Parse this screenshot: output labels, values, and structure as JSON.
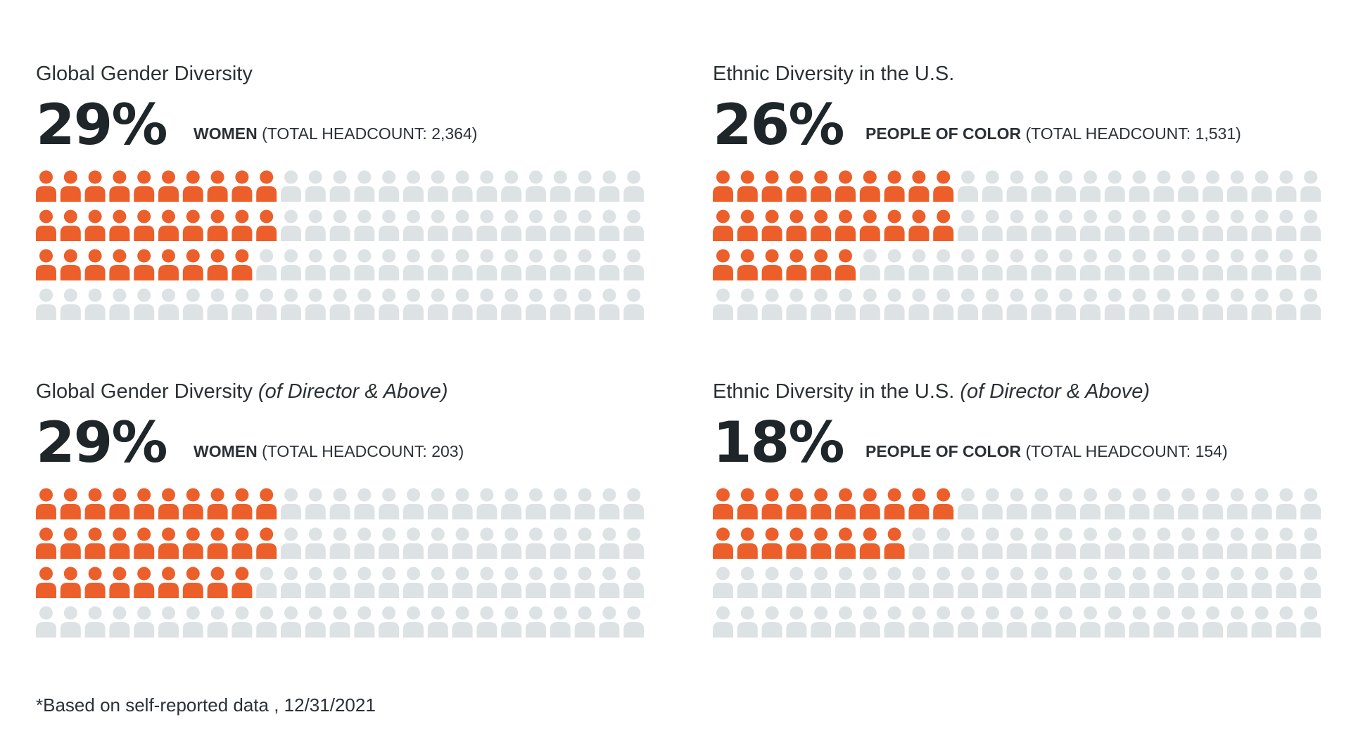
{
  "colors": {
    "highlight": "#ec5f2a",
    "base": "#dde2e4",
    "text": "#23292d"
  },
  "icon": "person-icon",
  "chart_data": [
    {
      "type": "waffle",
      "title": "Global Gender Diversity",
      "title_qualifier": "",
      "value_label": "29%",
      "group_label": "WOMEN",
      "headcount_label": "(TOTAL HEADCOUNT: 2,364)",
      "grid": {
        "rows": 4,
        "cols": 25
      },
      "highlighted_per_row": [
        10,
        10,
        9,
        0
      ],
      "highlighted_count": 29,
      "total_icons": 100
    },
    {
      "type": "waffle",
      "title": "Ethnic Diversity in the U.S.",
      "title_qualifier": "",
      "value_label": "26%",
      "group_label": "PEOPLE OF COLOR",
      "headcount_label": "(TOTAL HEADCOUNT: 1,531)",
      "grid": {
        "rows": 4,
        "cols": 25
      },
      "highlighted_per_row": [
        10,
        10,
        6,
        0
      ],
      "highlighted_count": 26,
      "total_icons": 100
    },
    {
      "type": "waffle",
      "title": "Global Gender Diversity",
      "title_qualifier": "(of Director & Above)",
      "value_label": "29%",
      "group_label": "WOMEN",
      "headcount_label": "(TOTAL HEADCOUNT: 203)",
      "grid": {
        "rows": 4,
        "cols": 25
      },
      "highlighted_per_row": [
        10,
        10,
        9,
        0
      ],
      "highlighted_count": 29,
      "total_icons": 100
    },
    {
      "type": "waffle",
      "title": "Ethnic Diversity in the U.S.",
      "title_qualifier": "(of Director & Above)",
      "value_label": "18%",
      "group_label": "PEOPLE OF COLOR",
      "headcount_label": "(TOTAL HEADCOUNT: 154)",
      "grid": {
        "rows": 4,
        "cols": 25
      },
      "highlighted_per_row": [
        10,
        8,
        0,
        0
      ],
      "highlighted_count": 18,
      "total_icons": 100
    }
  ],
  "footnote": "*Based on self-reported data , 12/31/2021"
}
